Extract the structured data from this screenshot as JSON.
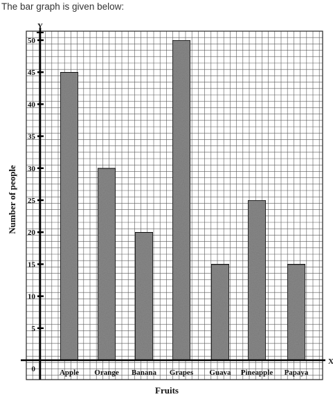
{
  "intro_text": "The bar graph is given below:",
  "chart_data": {
    "type": "bar",
    "categories": [
      "Apple",
      "Orange",
      "Banana",
      "Grapes",
      "Guava",
      "Pineapple",
      "Papaya"
    ],
    "values": [
      45,
      30,
      20,
      50,
      15,
      25,
      15
    ],
    "xlabel": "Fruits",
    "ylabel": "Number of people",
    "x_axis_letter": "X",
    "y_axis_letter": "Y",
    "origin_label": "0",
    "yticks": [
      5,
      10,
      15,
      20,
      25,
      30,
      35,
      40,
      45,
      50
    ],
    "ylim": [
      0,
      50
    ],
    "grid": true,
    "bar_color": "#8a8a8a"
  }
}
